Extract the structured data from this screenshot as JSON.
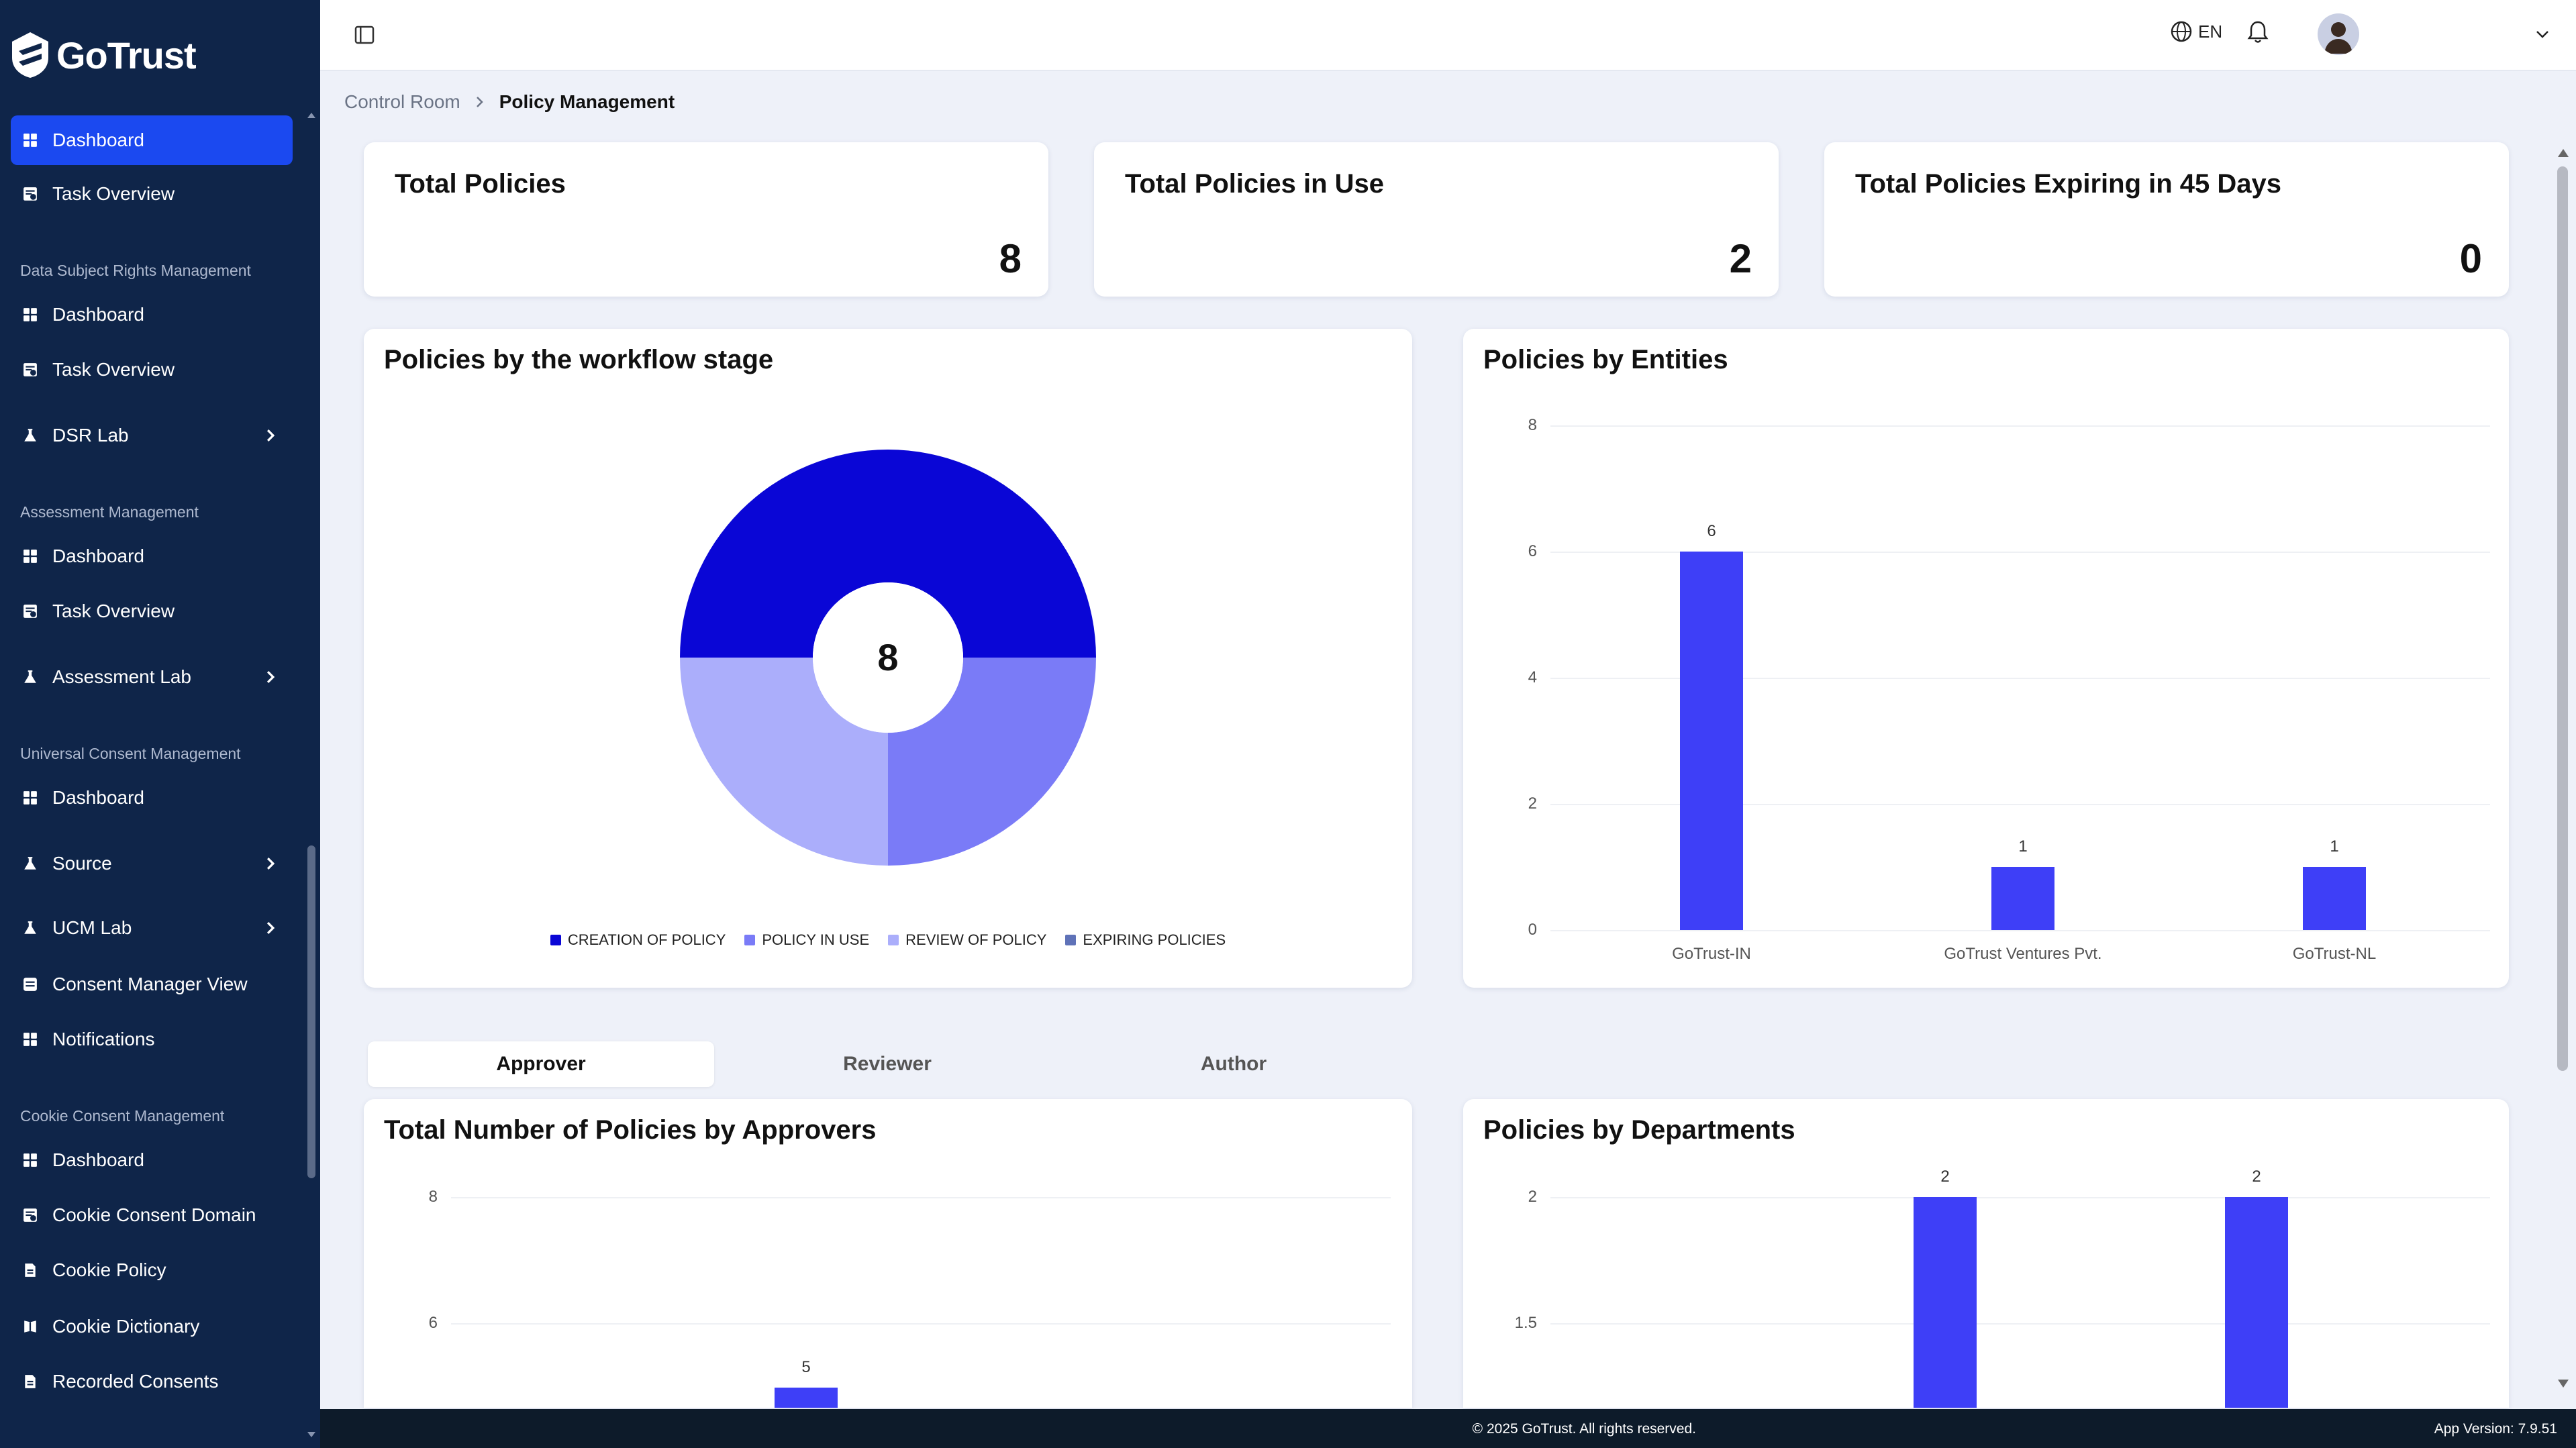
{
  "app": {
    "name": "GoTrust"
  },
  "sidebar": {
    "top": [
      {
        "label": "Dashboard",
        "icon": "grid-icon",
        "active": true
      },
      {
        "label": "Task Overview",
        "icon": "task-icon"
      }
    ],
    "sections": [
      {
        "title": "Data Subject Rights Management",
        "items": [
          {
            "label": "Dashboard",
            "icon": "grid-icon"
          },
          {
            "label": "Task Overview",
            "icon": "task-icon"
          },
          {
            "label": "DSR Lab",
            "icon": "flask-icon",
            "has_children": true
          }
        ]
      },
      {
        "title": "Assessment Management",
        "items": [
          {
            "label": "Dashboard",
            "icon": "grid-icon"
          },
          {
            "label": "Task Overview",
            "icon": "task-icon"
          },
          {
            "label": "Assessment Lab",
            "icon": "flask-icon",
            "has_children": true
          }
        ]
      },
      {
        "title": "Universal Consent Management",
        "items": [
          {
            "label": "Dashboard",
            "icon": "grid-icon"
          },
          {
            "label": "Source",
            "icon": "flask-icon",
            "has_children": true
          },
          {
            "label": "UCM Lab",
            "icon": "flask-icon",
            "has_children": true
          },
          {
            "label": "Consent Manager View",
            "icon": "consent-icon"
          },
          {
            "label": "Notifications",
            "icon": "grid-icon"
          }
        ]
      },
      {
        "title": "Cookie Consent Management",
        "items": [
          {
            "label": "Dashboard",
            "icon": "grid-icon"
          },
          {
            "label": "Cookie Consent Domain",
            "icon": "task-icon"
          },
          {
            "label": "Cookie Policy",
            "icon": "document-icon"
          },
          {
            "label": "Cookie Dictionary",
            "icon": "dictionary-icon"
          },
          {
            "label": "Recorded Consents",
            "icon": "document-icon"
          }
        ]
      }
    ]
  },
  "header": {
    "language": "EN"
  },
  "breadcrumb": {
    "parent": "Control Room",
    "current": "Policy Management"
  },
  "kpis": [
    {
      "title": "Total Policies",
      "value": "8"
    },
    {
      "title": "Total Policies in Use",
      "value": "2"
    },
    {
      "title": "Total Policies Expiring in 45 Days",
      "value": "0"
    }
  ],
  "charts": {
    "workflow": {
      "title": "Policies by the workflow stage",
      "center_label": "8"
    },
    "entities": {
      "title": "Policies by Entities"
    },
    "approvers": {
      "title": "Total Number of Policies by Approvers"
    },
    "departments": {
      "title": "Policies by Departments"
    }
  },
  "tabs": [
    {
      "label": "Approver",
      "active": true
    },
    {
      "label": "Reviewer"
    },
    {
      "label": "Author"
    }
  ],
  "footer": {
    "copyright": "© 2025 GoTrust. All rights reserved.",
    "version": "App Version: 7.9.51"
  },
  "colors": {
    "accent": "#1b49f0",
    "sidebar": "#0f2549",
    "bar": "#3e3ff7"
  },
  "chart_data": [
    {
      "type": "pie",
      "title": "Policies by the workflow stage",
      "categories": [
        "CREATION OF POLICY",
        "POLICY IN USE",
        "REVIEW OF POLICY",
        "EXPIRING POLICIES"
      ],
      "values": [
        4,
        2,
        2,
        0
      ],
      "colors": [
        "#0a06d6",
        "#7a7bf7",
        "#abaefb",
        "#5f72b8"
      ],
      "legend": "bottom"
    },
    {
      "type": "bar",
      "title": "Policies by Entities",
      "categories": [
        "GoTrust-IN",
        "GoTrust Ventures Pvt.",
        "GoTrust-NL"
      ],
      "values": [
        6,
        1,
        1
      ],
      "ylim": [
        0,
        8
      ],
      "yticks": [
        0,
        2,
        4,
        6,
        8
      ],
      "grid": true
    },
    {
      "type": "bar",
      "title": "Total Number of Policies by Approvers",
      "categories": [
        ""
      ],
      "values": [
        5
      ],
      "yticks_visible": [
        6,
        8
      ],
      "grid": true
    },
    {
      "type": "bar",
      "title": "Policies by Departments",
      "categories": [
        "",
        ""
      ],
      "values": [
        2,
        2
      ],
      "yticks_visible": [
        1.5,
        2
      ],
      "grid": true
    }
  ]
}
